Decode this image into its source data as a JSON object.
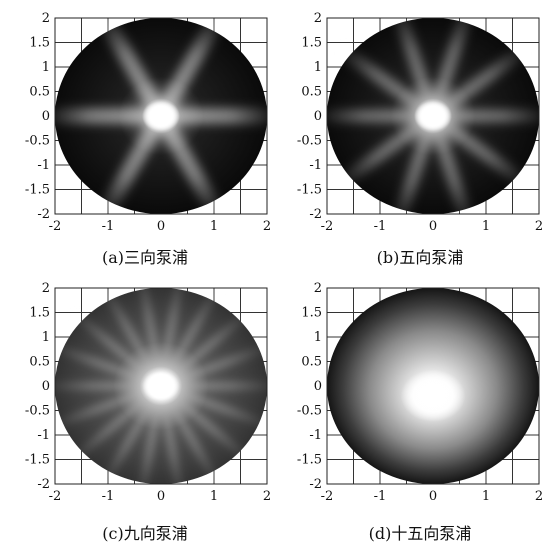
{
  "chart_data": [
    {
      "type": "heatmap",
      "caption": "(a)三向泵浦",
      "xlim": [
        -2,
        2
      ],
      "ylim": [
        -2,
        2
      ],
      "x_ticks": [
        "-2",
        "-1",
        "0",
        "1",
        "2"
      ],
      "y_ticks": [
        "2",
        "1.5",
        "1",
        "0.5",
        "0",
        "-0.5",
        "-1",
        "-1.5",
        "-2"
      ],
      "grid": true,
      "spokes": 3,
      "center": [
        0.0,
        0.0
      ]
    },
    {
      "type": "heatmap",
      "caption": "(b)五向泵浦",
      "xlim": [
        -2,
        2
      ],
      "ylim": [
        -2,
        2
      ],
      "x_ticks": [
        "-2",
        "-1",
        "0",
        "1",
        "2"
      ],
      "y_ticks": [
        "2",
        "1.5",
        "1",
        "0.5",
        "0",
        "-0.5",
        "-1",
        "-1.5",
        "-2"
      ],
      "grid": true,
      "spokes": 5,
      "center": [
        0.0,
        0.0
      ]
    },
    {
      "type": "heatmap",
      "caption": "(c)九向泵浦",
      "xlim": [
        -2,
        2
      ],
      "ylim": [
        -2,
        2
      ],
      "x_ticks": [
        "-2",
        "-1",
        "0",
        "1",
        "2"
      ],
      "y_ticks": [
        "2",
        "1.5",
        "1",
        "0.5",
        "0",
        "-0.5",
        "-1",
        "-1.5",
        "-2"
      ],
      "grid": true,
      "spokes": 9,
      "center": [
        0.0,
        0.0
      ]
    },
    {
      "type": "heatmap",
      "caption": "(d)十五向泵浦",
      "xlim": [
        -2,
        2
      ],
      "ylim": [
        -2,
        2
      ],
      "x_ticks": [
        "-2",
        "-1",
        "0",
        "1",
        "2"
      ],
      "y_ticks": [
        "2",
        "1.5",
        "1",
        "0.5",
        "0",
        "-0.5",
        "-1",
        "-1.5",
        "-2"
      ],
      "grid": true,
      "spokes": 15,
      "center": [
        0.0,
        -0.2
      ]
    }
  ]
}
